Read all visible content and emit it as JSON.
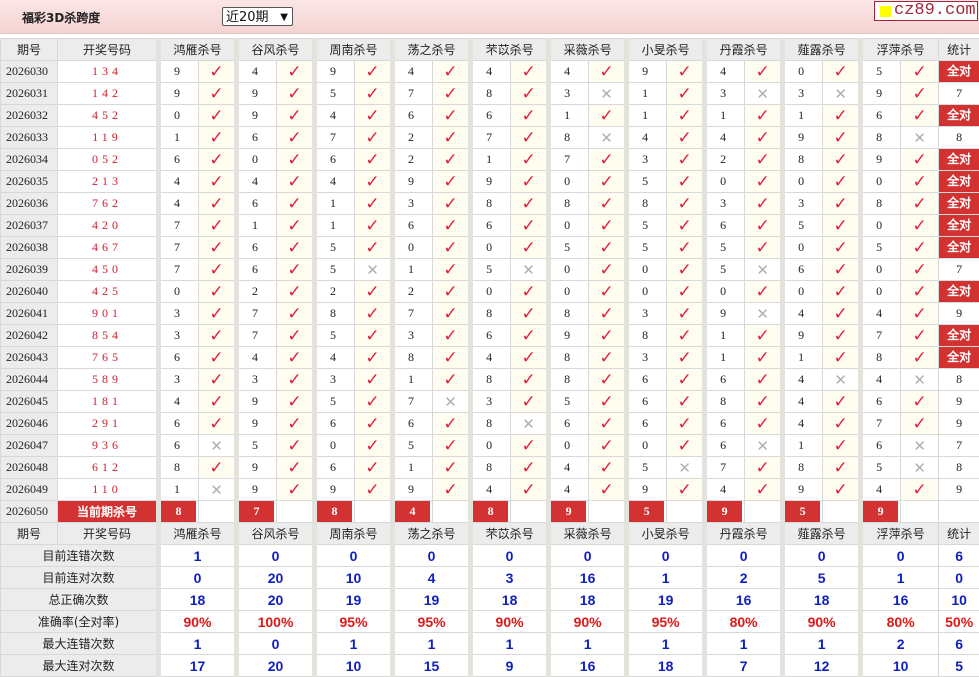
{
  "header": {
    "title": "福彩3D杀跨度",
    "range_select": "近20期",
    "logo_text": "cz89.com"
  },
  "columns": {
    "period": "期号",
    "draw": "开奖号码",
    "stat": "统计",
    "predictors": [
      "鸿雁杀号",
      "谷风杀号",
      "周南杀号",
      "荡之杀号",
      "芣苡杀号",
      "采薇杀号",
      "小旻杀号",
      "丹霞杀号",
      "薤露杀号",
      "浮萍杀号"
    ]
  },
  "all_correct_label": "全对",
  "rows": [
    {
      "period": "2026030",
      "draw": "134",
      "kills": [
        9,
        4,
        9,
        4,
        4,
        4,
        9,
        4,
        0,
        5
      ],
      "hits": [
        1,
        1,
        1,
        1,
        1,
        1,
        1,
        1,
        1,
        1
      ],
      "stat": "全对"
    },
    {
      "period": "2026031",
      "draw": "142",
      "kills": [
        9,
        9,
        5,
        7,
        8,
        3,
        1,
        3,
        3,
        9
      ],
      "hits": [
        1,
        1,
        1,
        1,
        1,
        0,
        1,
        0,
        0,
        1
      ],
      "stat": "7"
    },
    {
      "period": "2026032",
      "draw": "452",
      "kills": [
        0,
        9,
        4,
        6,
        6,
        1,
        1,
        1,
        1,
        6
      ],
      "hits": [
        1,
        1,
        1,
        1,
        1,
        1,
        1,
        1,
        1,
        1
      ],
      "stat": "全对"
    },
    {
      "period": "2026033",
      "draw": "119",
      "kills": [
        1,
        6,
        7,
        2,
        7,
        8,
        4,
        4,
        9,
        8
      ],
      "hits": [
        1,
        1,
        1,
        1,
        1,
        0,
        1,
        1,
        1,
        0
      ],
      "stat": "8"
    },
    {
      "period": "2026034",
      "draw": "052",
      "kills": [
        6,
        0,
        6,
        2,
        1,
        7,
        3,
        2,
        8,
        9
      ],
      "hits": [
        1,
        1,
        1,
        1,
        1,
        1,
        1,
        1,
        1,
        1
      ],
      "stat": "全对"
    },
    {
      "period": "2026035",
      "draw": "213",
      "kills": [
        4,
        4,
        4,
        9,
        9,
        0,
        5,
        0,
        0,
        0
      ],
      "hits": [
        1,
        1,
        1,
        1,
        1,
        1,
        1,
        1,
        1,
        1
      ],
      "stat": "全对"
    },
    {
      "period": "2026036",
      "draw": "762",
      "kills": [
        4,
        6,
        1,
        3,
        8,
        8,
        8,
        3,
        3,
        8
      ],
      "hits": [
        1,
        1,
        1,
        1,
        1,
        1,
        1,
        1,
        1,
        1
      ],
      "stat": "全对"
    },
    {
      "period": "2026037",
      "draw": "420",
      "kills": [
        7,
        1,
        1,
        6,
        6,
        0,
        5,
        6,
        5,
        0
      ],
      "hits": [
        1,
        1,
        1,
        1,
        1,
        1,
        1,
        1,
        1,
        1
      ],
      "stat": "全对"
    },
    {
      "period": "2026038",
      "draw": "467",
      "kills": [
        7,
        6,
        5,
        0,
        0,
        5,
        5,
        5,
        0,
        5
      ],
      "hits": [
        1,
        1,
        1,
        1,
        1,
        1,
        1,
        1,
        1,
        1
      ],
      "stat": "全对"
    },
    {
      "period": "2026039",
      "draw": "450",
      "kills": [
        7,
        6,
        5,
        1,
        5,
        0,
        0,
        5,
        6,
        0
      ],
      "hits": [
        1,
        1,
        0,
        1,
        0,
        1,
        1,
        0,
        1,
        1
      ],
      "stat": "7"
    },
    {
      "period": "2026040",
      "draw": "425",
      "kills": [
        0,
        2,
        2,
        2,
        0,
        0,
        0,
        0,
        0,
        0
      ],
      "hits": [
        1,
        1,
        1,
        1,
        1,
        1,
        1,
        1,
        1,
        1
      ],
      "stat": "全对"
    },
    {
      "period": "2026041",
      "draw": "901",
      "kills": [
        3,
        7,
        8,
        7,
        8,
        8,
        3,
        9,
        4,
        4
      ],
      "hits": [
        1,
        1,
        1,
        1,
        1,
        1,
        1,
        0,
        1,
        1
      ],
      "stat": "9"
    },
    {
      "period": "2026042",
      "draw": "854",
      "kills": [
        3,
        7,
        5,
        3,
        6,
        9,
        8,
        1,
        9,
        7
      ],
      "hits": [
        1,
        1,
        1,
        1,
        1,
        1,
        1,
        1,
        1,
        1
      ],
      "stat": "全对"
    },
    {
      "period": "2026043",
      "draw": "765",
      "kills": [
        6,
        4,
        4,
        8,
        4,
        8,
        3,
        1,
        1,
        8
      ],
      "hits": [
        1,
        1,
        1,
        1,
        1,
        1,
        1,
        1,
        1,
        1
      ],
      "stat": "全对"
    },
    {
      "period": "2026044",
      "draw": "589",
      "kills": [
        3,
        3,
        3,
        1,
        8,
        8,
        6,
        6,
        4,
        4
      ],
      "hits": [
        1,
        1,
        1,
        1,
        1,
        1,
        1,
        1,
        0,
        0
      ],
      "stat": "8"
    },
    {
      "period": "2026045",
      "draw": "181",
      "kills": [
        4,
        9,
        5,
        7,
        3,
        5,
        6,
        8,
        4,
        6
      ],
      "hits": [
        1,
        1,
        1,
        0,
        1,
        1,
        1,
        1,
        1,
        1
      ],
      "stat": "9"
    },
    {
      "period": "2026046",
      "draw": "291",
      "kills": [
        6,
        9,
        6,
        6,
        8,
        6,
        6,
        6,
        4,
        7
      ],
      "hits": [
        1,
        1,
        1,
        1,
        0,
        1,
        1,
        1,
        1,
        1
      ],
      "stat": "9"
    },
    {
      "period": "2026047",
      "draw": "936",
      "kills": [
        6,
        5,
        0,
        5,
        0,
        0,
        0,
        6,
        1,
        6
      ],
      "hits": [
        0,
        1,
        1,
        1,
        1,
        1,
        1,
        0,
        1,
        0
      ],
      "stat": "7"
    },
    {
      "period": "2026048",
      "draw": "612",
      "kills": [
        8,
        9,
        6,
        1,
        8,
        4,
        5,
        7,
        8,
        5
      ],
      "hits": [
        1,
        1,
        1,
        1,
        1,
        1,
        0,
        1,
        1,
        0
      ],
      "stat": "8"
    },
    {
      "period": "2026049",
      "draw": "110",
      "kills": [
        1,
        9,
        9,
        9,
        4,
        4,
        9,
        4,
        9,
        4
      ],
      "hits": [
        0,
        1,
        1,
        1,
        1,
        1,
        1,
        1,
        1,
        1
      ],
      "stat": "9"
    }
  ],
  "current": {
    "period": "2026050",
    "label": "当前期杀号",
    "kills": [
      8,
      7,
      8,
      4,
      8,
      9,
      5,
      9,
      5,
      9
    ]
  },
  "stats": [
    {
      "label": "目前连错次数",
      "values": [
        "1",
        "0",
        "0",
        "0",
        "0",
        "0",
        "0",
        "0",
        "0",
        "0"
      ],
      "stat": "6",
      "type": "num"
    },
    {
      "label": "目前连对次数",
      "values": [
        "0",
        "20",
        "10",
        "4",
        "3",
        "16",
        "1",
        "2",
        "5",
        "1"
      ],
      "stat": "0",
      "type": "num"
    },
    {
      "label": "总正确次数",
      "values": [
        "18",
        "20",
        "19",
        "19",
        "18",
        "18",
        "19",
        "16",
        "18",
        "16"
      ],
      "stat": "10",
      "type": "num"
    },
    {
      "label": "准确率(全对率)",
      "values": [
        "90%",
        "100%",
        "95%",
        "95%",
        "90%",
        "90%",
        "95%",
        "80%",
        "90%",
        "80%"
      ],
      "stat": "50%",
      "type": "pct"
    },
    {
      "label": "最大连错次数",
      "values": [
        "1",
        "0",
        "1",
        "1",
        "1",
        "1",
        "1",
        "1",
        "1",
        "2"
      ],
      "stat": "6",
      "type": "num"
    },
    {
      "label": "最大连对次数",
      "values": [
        "17",
        "20",
        "10",
        "15",
        "9",
        "16",
        "18",
        "7",
        "12",
        "10"
      ],
      "stat": "5",
      "type": "num"
    }
  ],
  "colors": {
    "accent_red": "#d23232",
    "check_red": "#e0203a",
    "stat_blue": "#1020c0",
    "logo_square": "#ffff00"
  }
}
